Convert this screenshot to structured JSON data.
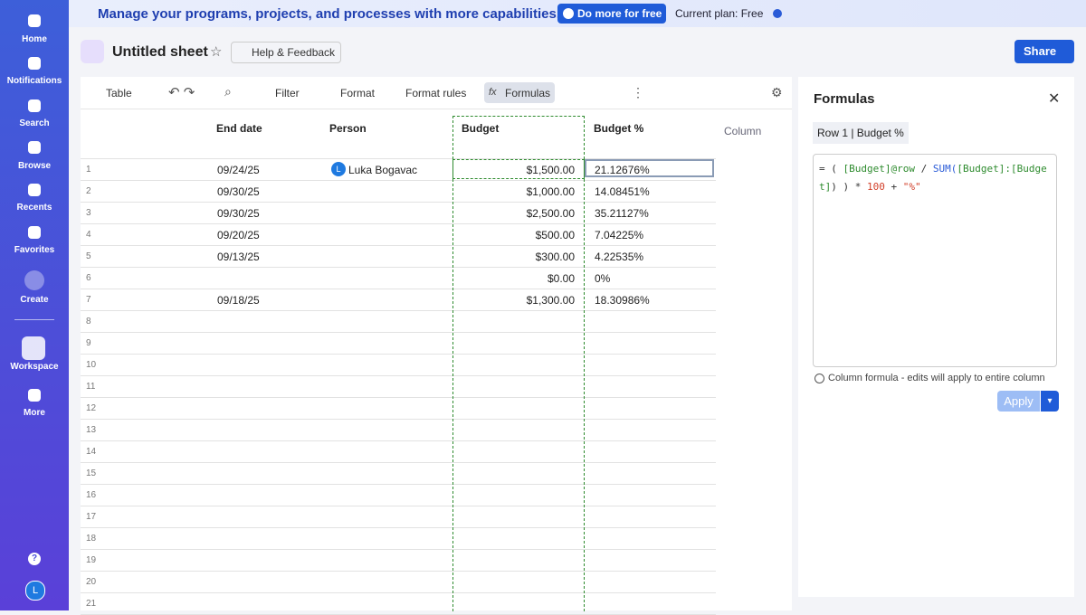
{
  "sidebar": {
    "items": [
      "Home",
      "Notifications",
      "Search",
      "Browse",
      "Recents",
      "Favorites",
      "Create",
      "Workspace",
      "More"
    ],
    "help": "?",
    "avatar": "L"
  },
  "banner": {
    "text": "Manage your programs, projects, and processes with more capabilities.",
    "button": "Do more for free",
    "plan": "Current plan: Free"
  },
  "header": {
    "title": "Untitled sheet",
    "help": "Help & Feedback",
    "share": "Share"
  },
  "toolbar": {
    "view": "Table",
    "filter": "Filter",
    "format": "Format",
    "format_rules": "Format rules",
    "formulas": "Formulas"
  },
  "grid": {
    "columns": [
      "End date",
      "Person",
      "Budget",
      "Budget %"
    ],
    "add_column": "Column",
    "rows": [
      {
        "num": 1,
        "end_date": "09/24/25",
        "person": "Luka Bogavac",
        "avatar": "L",
        "budget": "$1,500.00",
        "budget_pct": "21.12676%"
      },
      {
        "num": 2,
        "end_date": "09/30/25",
        "budget": "$1,000.00",
        "budget_pct": "14.08451%"
      },
      {
        "num": 3,
        "end_date": "09/30/25",
        "budget": "$2,500.00",
        "budget_pct": "35.21127%"
      },
      {
        "num": 4,
        "end_date": "09/20/25",
        "budget": "$500.00",
        "budget_pct": "7.04225%"
      },
      {
        "num": 5,
        "end_date": "09/13/25",
        "budget": "$300.00",
        "budget_pct": "4.22535%"
      },
      {
        "num": 6,
        "budget": "$0.00",
        "budget_pct": "0%"
      },
      {
        "num": 7,
        "end_date": "09/18/25",
        "budget": "$1,300.00",
        "budget_pct": "18.30986%"
      },
      {
        "num": 8
      },
      {
        "num": 9
      },
      {
        "num": 10
      },
      {
        "num": 11
      },
      {
        "num": 12
      },
      {
        "num": 13
      },
      {
        "num": 14
      },
      {
        "num": 15
      },
      {
        "num": 16
      },
      {
        "num": 17
      },
      {
        "num": 18
      },
      {
        "num": 19
      },
      {
        "num": 20
      },
      {
        "num": 21
      }
    ]
  },
  "panel": {
    "title": "Formulas",
    "cell_ref": "Row 1 | Budget %",
    "formula": [
      {
        "text": "= ( ",
        "color": "#333333"
      },
      {
        "text": "[Budget]@row",
        "color": "#2e8b2e"
      },
      {
        "text": " / ",
        "color": "#333333"
      },
      {
        "text": "SUM(",
        "color": "#2a5bd7"
      },
      {
        "text": "[Budget]:[Budget]",
        "color": "#2e8b2e"
      },
      {
        "text": ") ) * ",
        "color": "#333333"
      },
      {
        "text": "100",
        "color": "#d2402a"
      },
      {
        "text": " + ",
        "color": "#333333"
      },
      {
        "text": "\"%\"",
        "color": "#d2402a"
      }
    ],
    "note": "Column formula - edits will apply to entire column",
    "apply": "Apply"
  }
}
